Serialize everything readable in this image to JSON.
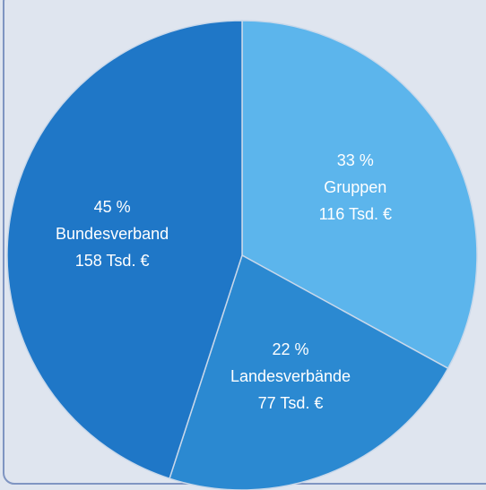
{
  "chart_data": {
    "type": "pie",
    "categories": [
      "Gruppen",
      "Landesverbände",
      "Bundesverband"
    ],
    "values": [
      33,
      22,
      45
    ],
    "value_labels": [
      "33 %",
      "22 %",
      "45 %"
    ],
    "amounts": [
      116,
      77,
      158
    ],
    "amount_labels": [
      "116 Tsd. €",
      "77 Tsd. €",
      "158 Tsd. €"
    ],
    "colors": [
      "#5cb5ec",
      "#2b89d1",
      "#1f77c7"
    ]
  }
}
